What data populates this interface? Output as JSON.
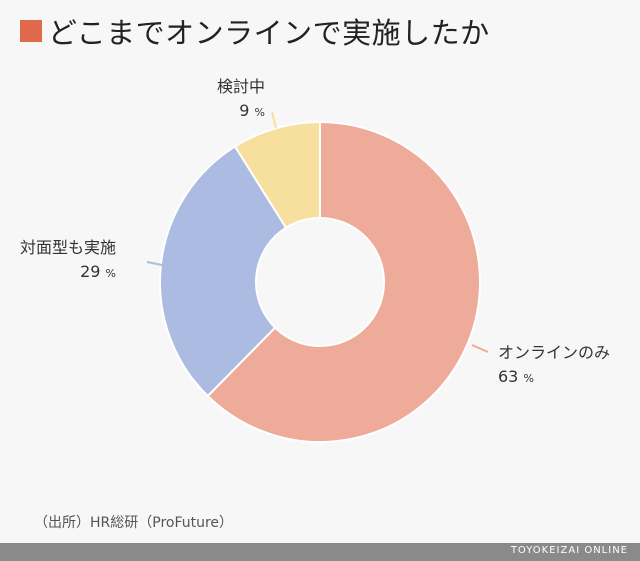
{
  "title": "どこまでオンラインで実施したか",
  "title_marker_color": "#e0694a",
  "chart_data": {
    "type": "pie",
    "donut": true,
    "unit": "%",
    "slices": [
      {
        "label": "オンラインのみ",
        "value": 63,
        "color": "#eeab9a"
      },
      {
        "label": "対面型も実施",
        "value": 29,
        "color": "#abbbe2"
      },
      {
        "label": "検討中",
        "value": 9,
        "color": "#f7df9e"
      }
    ],
    "start": "12 o'clock",
    "direction": "clockwise"
  },
  "source": "（出所）HR総研（ProFuture）",
  "footer": "TOYOKEIZAI ONLINE"
}
